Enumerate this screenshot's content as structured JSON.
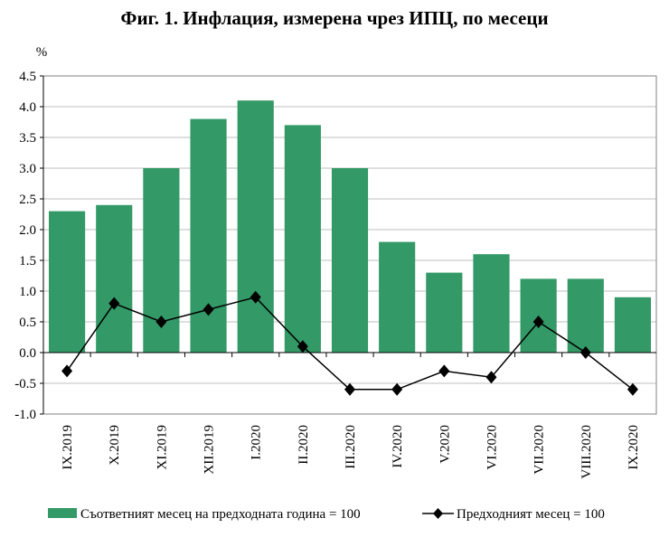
{
  "chart_data": {
    "type": "bar",
    "title": "Фиг. 1. Инфлация, измерена чрез ИПЦ, по месеци",
    "ylabel": "%",
    "xlabel": "",
    "ylim": [
      -1.0,
      4.5
    ],
    "yticks": [
      "4.5",
      "4.0",
      "3.5",
      "3.0",
      "2.5",
      "2.0",
      "1.5",
      "1.0",
      "0.5",
      "0.0",
      "-0.5",
      "-1.0"
    ],
    "grid": true,
    "legend_position": "bottom",
    "categories": [
      "IX.2019",
      "X.2019",
      "XI.2019",
      "XII.2019",
      "I.2020",
      "II.2020",
      "III.2020",
      "IV.2020",
      "V.2020",
      "VI.2020",
      "VII.2020",
      "VIII.2020",
      "IX.2020"
    ],
    "series": [
      {
        "name": "Съответният месец на предходната година = 100",
        "type": "bar",
        "color": "#339966",
        "values": [
          2.3,
          2.4,
          3.0,
          3.8,
          4.1,
          3.7,
          3.0,
          1.8,
          1.3,
          1.6,
          1.2,
          1.2,
          0.9
        ]
      },
      {
        "name": "Предходният месец = 100",
        "type": "line",
        "marker": "diamond",
        "color": "#000000",
        "values": [
          -0.3,
          0.8,
          0.5,
          0.7,
          0.9,
          0.1,
          -0.6,
          -0.6,
          -0.3,
          -0.4,
          0.5,
          0.0,
          -0.6
        ]
      }
    ]
  }
}
